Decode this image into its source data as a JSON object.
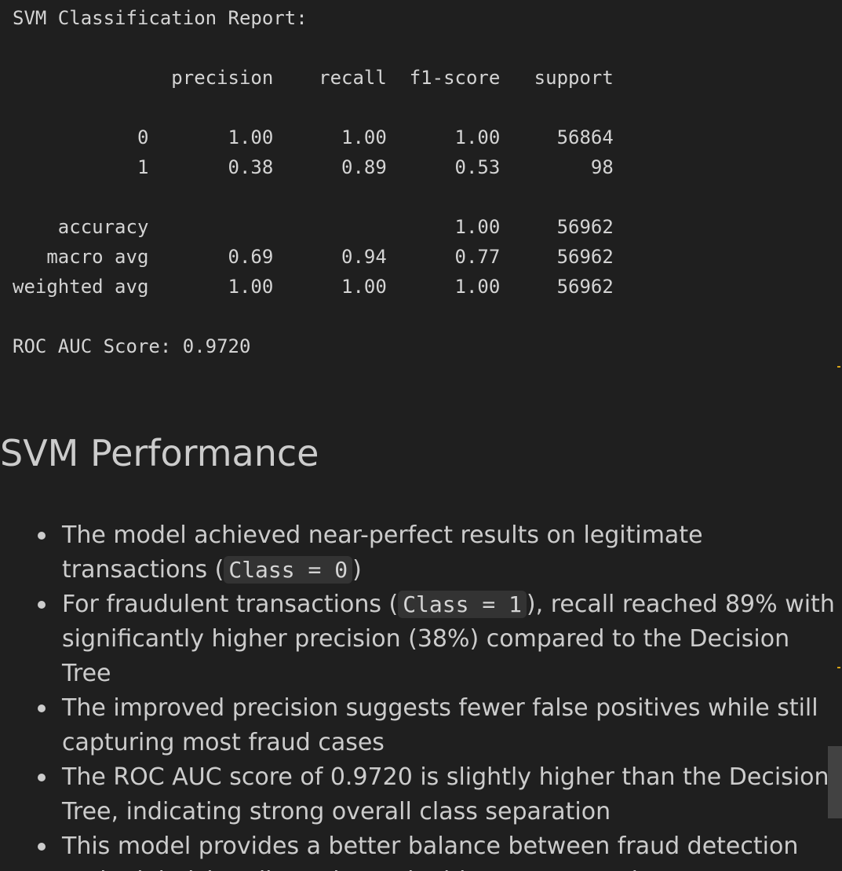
{
  "output": {
    "title": "SVM Classification Report:",
    "header": {
      "precision": "precision",
      "recall": "recall",
      "f1": "f1-score",
      "support": "support"
    },
    "rows": [
      {
        "label": "0",
        "precision": "1.00",
        "recall": "1.00",
        "f1": "1.00",
        "support": "56864"
      },
      {
        "label": "1",
        "precision": "0.38",
        "recall": "0.89",
        "f1": "0.53",
        "support": "98"
      },
      {
        "label": "accuracy",
        "precision": "",
        "recall": "",
        "f1": "1.00",
        "support": "56962"
      },
      {
        "label": "macro avg",
        "precision": "0.69",
        "recall": "0.94",
        "f1": "0.77",
        "support": "56962"
      },
      {
        "label": "weighted avg",
        "precision": "1.00",
        "recall": "1.00",
        "f1": "1.00",
        "support": "56962"
      }
    ],
    "roc_auc_line": "ROC AUC Score: 0.9720"
  },
  "markdown": {
    "heading": "SVM Performance",
    "bullets": [
      {
        "before": "The model achieved near-perfect results on legitimate transactions (",
        "code": "Class = 0",
        "after": ")"
      },
      {
        "before": "For fraudulent transactions (",
        "code": "Class = 1",
        "after": "), recall reached 89% with significantly higher precision (38%) compared to the Decision Tree"
      },
      {
        "before": "The improved precision suggests fewer false positives while still capturing most fraud cases",
        "code": "",
        "after": ""
      },
      {
        "before": "The ROC AUC score of 0.9720 is slightly higher than the Decision Tree, indicating strong overall class separation",
        "code": "",
        "after": ""
      },
      {
        "before": "This model provides a better balance between fraud detection and minimizing disruption to legitimate transactions",
        "code": "",
        "after": ""
      }
    ]
  },
  "colors": {
    "background": "#1f1f1f",
    "text": "#cccccc",
    "code_chip_bg": "#333333",
    "ruler_mark": "#d7a316",
    "scroll_thumb": "#424242"
  }
}
